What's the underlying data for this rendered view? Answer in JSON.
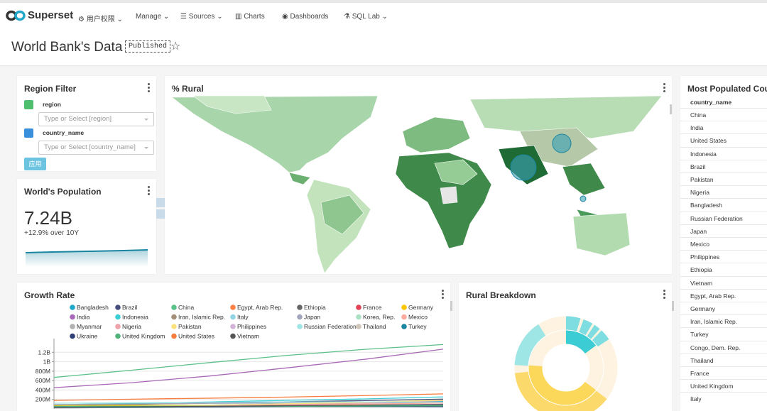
{
  "nav": {
    "brand": "Superset",
    "menu": [
      "用户权限",
      "Manage",
      "Sources",
      "Charts",
      "Dashboards",
      "SQL Lab"
    ]
  },
  "header": {
    "title": "World Bank's Data",
    "status": "Published"
  },
  "region_filter": {
    "title": "Region Filter",
    "filters": [
      {
        "label": "region",
        "placeholder": "Type or Select [region]"
      },
      {
        "label": "country_name",
        "placeholder": "Type or Select [country_name]"
      }
    ],
    "button": "应用"
  },
  "world_population": {
    "title": "World's Population",
    "value": "7.24B",
    "subtitle": "+12.9% over 10Y"
  },
  "rural_map": {
    "title": "% Rural"
  },
  "table": {
    "title": "Most Populated Countries",
    "columns": [
      "country_name"
    ],
    "rows": [
      "China",
      "India",
      "United States",
      "Indonesia",
      "Brazil",
      "Pakistan",
      "Nigeria",
      "Bangladesh",
      "Russian Federation",
      "Japan",
      "Mexico",
      "Philippines",
      "Ethiopia",
      "Vietnam",
      "Egypt, Arab Rep.",
      "Germany",
      "Iran, Islamic Rep.",
      "Turkey",
      "Congo, Dem. Rep.",
      "Thailand",
      "France",
      "United Kingdom",
      "Italy"
    ]
  },
  "rural_breakdown": {
    "title": "Rural Breakdown"
  },
  "chart_data": {
    "type": "line",
    "title": "Growth Rate",
    "categories": [
      null,
      null,
      null,
      null,
      null,
      null
    ],
    "ylim": [
      0,
      1400000000
    ],
    "yticks": [
      {
        "value": 200000000,
        "label": "200M"
      },
      {
        "value": 400000000,
        "label": "400M"
      },
      {
        "value": 600000000,
        "label": "600M"
      },
      {
        "value": 800000000,
        "label": "800M"
      },
      {
        "value": 1000000000,
        "label": "1B"
      },
      {
        "value": 1200000000,
        "label": "1.2B"
      }
    ],
    "grid": true,
    "series": [
      {
        "name": "Bangladesh",
        "color": "#1fa8c9",
        "values": [
          48000000,
          66000000,
          80000000,
          106000000,
          131000000,
          159000000
        ]
      },
      {
        "name": "Brazil",
        "color": "#454e7c",
        "values": [
          72000000,
          96000000,
          122000000,
          150000000,
          175000000,
          206000000
        ]
      },
      {
        "name": "China",
        "color": "#5ac189",
        "values": [
          667000000,
          820000000,
          981000000,
          1135000000,
          1263000000,
          1364000000
        ]
      },
      {
        "name": "Egypt, Arab Rep.",
        "color": "#ff7f44",
        "values": [
          27000000,
          35000000,
          43000000,
          56000000,
          68000000,
          89000000
        ]
      },
      {
        "name": "Ethiopia",
        "color": "#666666",
        "values": [
          22000000,
          29000000,
          35000000,
          48000000,
          66000000,
          97000000
        ]
      },
      {
        "name": "France",
        "color": "#e04355",
        "values": [
          46000000,
          51000000,
          54000000,
          57000000,
          61000000,
          66000000
        ]
      },
      {
        "name": "Germany",
        "color": "#fcc700",
        "values": [
          73000000,
          78000000,
          78000000,
          79000000,
          82000000,
          81000000
        ]
      },
      {
        "name": "India",
        "color": "#a868b7",
        "values": [
          450000000,
          555000000,
          697000000,
          870000000,
          1053000000,
          1267000000
        ]
      },
      {
        "name": "Indonesia",
        "color": "#3cccd3",
        "values": [
          88000000,
          115000000,
          147000000,
          181000000,
          211000000,
          254000000
        ]
      },
      {
        "name": "Iran, Islamic Rep.",
        "color": "#a38f79",
        "values": [
          22000000,
          29000000,
          39000000,
          56000000,
          66000000,
          78000000
        ]
      },
      {
        "name": "Italy",
        "color": "#8fd3e4",
        "values": [
          50000000,
          54000000,
          56000000,
          57000000,
          57000000,
          61000000
        ]
      },
      {
        "name": "Japan",
        "color": "#a1a6bd",
        "values": [
          92000000,
          104000000,
          117000000,
          124000000,
          127000000,
          127000000
        ]
      },
      {
        "name": "Korea, Rep.",
        "color": "#ace1c4",
        "values": [
          25000000,
          32000000,
          38000000,
          43000000,
          47000000,
          50000000
        ]
      },
      {
        "name": "Mexico",
        "color": "#feaa9f",
        "values": [
          38000000,
          51000000,
          68000000,
          84000000,
          101000000,
          125000000
        ]
      },
      {
        "name": "Myanmar",
        "color": "#b2b2b2",
        "values": [
          21000000,
          27000000,
          34000000,
          41000000,
          46000000,
          53000000
        ]
      },
      {
        "name": "Nigeria",
        "color": "#efa1aa",
        "values": [
          45000000,
          56000000,
          73000000,
          95000000,
          122000000,
          177000000
        ]
      },
      {
        "name": "Pakistan",
        "color": "#fde380",
        "values": [
          46000000,
          59000000,
          78000000,
          108000000,
          138000000,
          185000000
        ]
      },
      {
        "name": "Philippines",
        "color": "#d3b3da",
        "values": [
          26000000,
          36000000,
          47000000,
          62000000,
          78000000,
          99000000
        ]
      },
      {
        "name": "Russian Federation",
        "color": "#9ee5e5",
        "values": [
          120000000,
          130000000,
          139000000,
          148000000,
          146000000,
          144000000
        ]
      },
      {
        "name": "Thailand",
        "color": "#d1c6bc",
        "values": [
          27000000,
          36000000,
          47000000,
          57000000,
          63000000,
          68000000
        ]
      },
      {
        "name": "Turkey",
        "color": "#1a85a0",
        "values": [
          28000000,
          35000000,
          44000000,
          54000000,
          64000000,
          76000000
        ]
      },
      {
        "name": "Ukraine",
        "color": "#2f3e75",
        "values": [
          43000000,
          47000000,
          50000000,
          52000000,
          49000000,
          45000000
        ]
      },
      {
        "name": "United Kingdom",
        "color": "#4fb37a",
        "values": [
          52000000,
          56000000,
          56000000,
          57000000,
          59000000,
          65000000
        ]
      },
      {
        "name": "United States",
        "color": "#f57c3c",
        "values": [
          180000000,
          205000000,
          227000000,
          250000000,
          282000000,
          318000000
        ]
      },
      {
        "name": "Vietnam",
        "color": "#555555",
        "values": [
          32000000,
          43000000,
          54000000,
          68000000,
          80000000,
          91000000
        ]
      }
    ]
  }
}
